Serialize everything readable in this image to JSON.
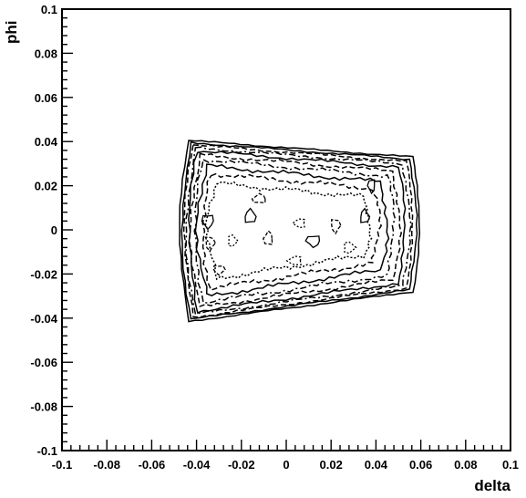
{
  "chart_data": {
    "type": "contour",
    "title": "",
    "xlabel": "delta",
    "ylabel": "phi",
    "xlim": [
      -0.1,
      0.1
    ],
    "ylim": [
      -0.1,
      0.1
    ],
    "x_ticks": [
      "-0.1",
      "-0.08",
      "-0.06",
      "-0.04",
      "-0.02",
      "0",
      "0.02",
      "0.04",
      "0.06",
      "0.08",
      "0.1"
    ],
    "y_ticks": [
      "-0.1",
      "-0.08",
      "-0.06",
      "-0.04",
      "-0.02",
      "0",
      "0.02",
      "0.04",
      "0.06",
      "0.08",
      "0.1"
    ],
    "grid": false,
    "legend": "none",
    "line_color": "#000000",
    "contour_levels": [
      {
        "level": 1,
        "style": "solid",
        "left": -0.0475,
        "right": 0.0605,
        "top_left": 0.0405,
        "top_right": 0.033,
        "bottom_left": -0.0415,
        "bottom_right": -0.028
      },
      {
        "level": 2,
        "style": "solid",
        "left": -0.0465,
        "right": 0.059,
        "top_left": 0.0395,
        "top_right": 0.032,
        "bottom_left": -0.0405,
        "bottom_right": -0.0272
      },
      {
        "level": 3,
        "style": "dashed",
        "left": -0.0455,
        "right": 0.0575,
        "top_left": 0.0385,
        "top_right": 0.031,
        "bottom_left": -0.0395,
        "bottom_right": -0.0264
      },
      {
        "level": 4,
        "style": "dashdot",
        "left": -0.0445,
        "right": 0.056,
        "top_left": 0.0372,
        "top_right": 0.0298,
        "bottom_left": -0.0382,
        "bottom_right": -0.0254
      },
      {
        "level": 5,
        "style": "solid",
        "left": -0.0435,
        "right": 0.054,
        "top_left": 0.0358,
        "top_right": 0.0284,
        "bottom_left": -0.0368,
        "bottom_right": -0.0242
      },
      {
        "level": 6,
        "style": "dashed",
        "left": -0.0425,
        "right": 0.0515,
        "top_left": 0.034,
        "top_right": 0.0266,
        "bottom_left": -0.035,
        "bottom_right": -0.0226
      },
      {
        "level": 7,
        "style": "dashdot",
        "left": -0.041,
        "right": 0.049,
        "top_left": 0.0318,
        "top_right": 0.0244,
        "bottom_left": -0.0328,
        "bottom_right": -0.0206
      },
      {
        "level": 8,
        "style": "solid",
        "left": -0.0395,
        "right": 0.046,
        "top_left": 0.029,
        "top_right": 0.0218,
        "bottom_left": -0.03,
        "bottom_right": -0.0182
      },
      {
        "level": 9,
        "style": "dashed",
        "left": -0.0375,
        "right": 0.0425,
        "top_left": 0.0255,
        "top_right": 0.0188,
        "bottom_left": -0.0265,
        "bottom_right": -0.0152
      },
      {
        "level": 10,
        "style": "dotted",
        "left": -0.035,
        "right": 0.0385,
        "top_left": 0.021,
        "top_right": 0.015,
        "bottom_left": -0.022,
        "bottom_right": -0.0115
      }
    ],
    "islands": [
      {
        "x": -0.035,
        "y": 0.004,
        "rx": 0.0025,
        "ry": 0.003
      },
      {
        "x": -0.034,
        "y": -0.006,
        "rx": 0.002,
        "ry": 0.003
      },
      {
        "x": -0.024,
        "y": -0.005,
        "rx": 0.002,
        "ry": 0.0025
      },
      {
        "x": -0.016,
        "y": 0.006,
        "rx": 0.0025,
        "ry": 0.003
      },
      {
        "x": -0.008,
        "y": -0.004,
        "rx": 0.002,
        "ry": 0.003
      },
      {
        "x": 0.006,
        "y": 0.003,
        "rx": 0.0025,
        "ry": 0.002
      },
      {
        "x": 0.012,
        "y": -0.005,
        "rx": 0.003,
        "ry": 0.0025
      },
      {
        "x": 0.022,
        "y": 0.002,
        "rx": 0.002,
        "ry": 0.003
      },
      {
        "x": 0.028,
        "y": -0.008,
        "rx": 0.0025,
        "ry": 0.0025
      },
      {
        "x": 0.035,
        "y": 0.006,
        "rx": 0.002,
        "ry": 0.003
      },
      {
        "x": -0.012,
        "y": 0.014,
        "rx": 0.003,
        "ry": 0.002
      },
      {
        "x": 0.004,
        "y": -0.014,
        "rx": 0.003,
        "ry": 0.002
      },
      {
        "x": 0.038,
        "y": 0.02,
        "rx": 0.0015,
        "ry": 0.003
      },
      {
        "x": -0.03,
        "y": -0.018,
        "rx": 0.0025,
        "ry": 0.002
      }
    ]
  }
}
